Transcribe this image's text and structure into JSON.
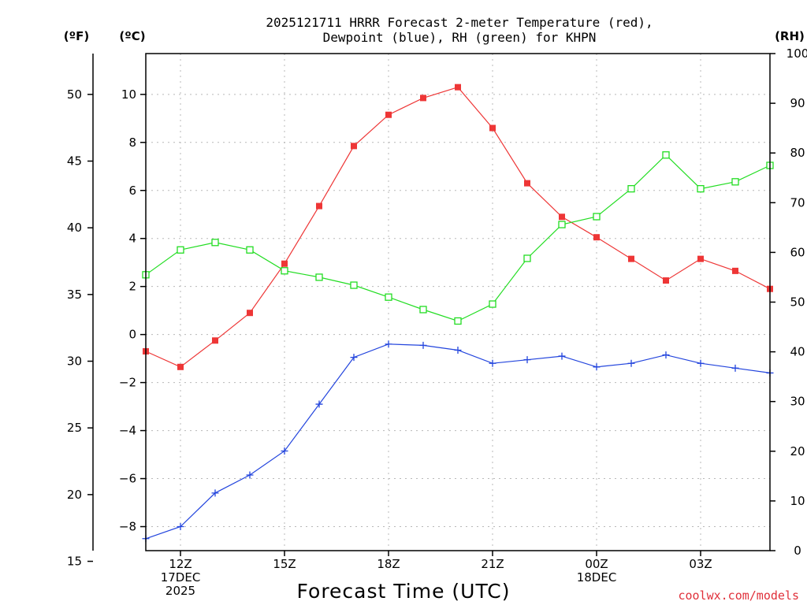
{
  "chart_data": {
    "type": "line",
    "title_lines": [
      "2025121711 HRRR Forecast 2-meter Temperature (red),",
      "Dewpoint (blue), RH (green) for KHPN"
    ],
    "xlabel": "Forecast Time (UTC)",
    "credit": "coolwx.com/models",
    "units": {
      "fahrenheit": "(ºF)",
      "celsius": "(ºC)",
      "rh": "(RH)"
    },
    "x_hours": [
      11,
      12,
      13,
      14,
      15,
      16,
      17,
      18,
      19,
      20,
      21,
      22,
      23,
      24,
      25,
      26,
      27,
      28,
      29
    ],
    "x_range": [
      11,
      29
    ],
    "x_ticks": [
      {
        "hour": 12,
        "lines": [
          "12Z",
          "17DEC",
          "2025"
        ]
      },
      {
        "hour": 15,
        "lines": [
          "15Z"
        ]
      },
      {
        "hour": 18,
        "lines": [
          "18Z"
        ]
      },
      {
        "hour": 21,
        "lines": [
          "21Z"
        ]
      },
      {
        "hour": 24,
        "lines": [
          "00Z",
          "18DEC"
        ]
      },
      {
        "hour": 27,
        "lines": [
          "03Z"
        ]
      }
    ],
    "celsius_axis": {
      "range": [
        -9,
        11.7
      ],
      "ticks": [
        -8,
        -6,
        -4,
        -2,
        0,
        2,
        4,
        6,
        8,
        10
      ]
    },
    "fahrenheit_axis": {
      "ticks": [
        15,
        20,
        25,
        30,
        35,
        40,
        45,
        50
      ]
    },
    "rh_axis": {
      "range": [
        0,
        100
      ],
      "ticks": [
        0,
        10,
        20,
        30,
        40,
        50,
        60,
        70,
        80,
        90,
        100
      ]
    },
    "series": [
      {
        "name": "2-meter Temperature",
        "units": "C",
        "axis": "celsius",
        "color": "#ee3636",
        "marker": "filled-square",
        "values": [
          -0.7,
          -1.35,
          -0.25,
          0.9,
          2.95,
          5.35,
          7.85,
          9.15,
          9.85,
          10.3,
          8.6,
          6.3,
          4.9,
          4.05,
          3.15,
          2.25,
          3.15,
          2.65,
          1.9
        ]
      },
      {
        "name": "Dewpoint",
        "units": "C",
        "axis": "celsius",
        "color": "#2244dd",
        "marker": "plus",
        "values": [
          -8.5,
          -8.0,
          -6.6,
          -5.85,
          -4.85,
          -2.9,
          -0.95,
          -0.4,
          -0.45,
          -0.65,
          -1.2,
          -1.05,
          -0.9,
          -1.35,
          -1.2,
          -0.85,
          -1.2,
          -1.4,
          -1.6
        ]
      },
      {
        "name": "RH",
        "units": "%",
        "axis": "rh",
        "color": "#22dd22",
        "marker": "open-square",
        "values": [
          55.5,
          60.5,
          62.0,
          60.5,
          56.3,
          55.0,
          53.4,
          51.0,
          48.5,
          46.2,
          49.6,
          58.8,
          65.6,
          67.2,
          72.8,
          79.6,
          72.8,
          74.2,
          77.5
        ]
      }
    ]
  }
}
